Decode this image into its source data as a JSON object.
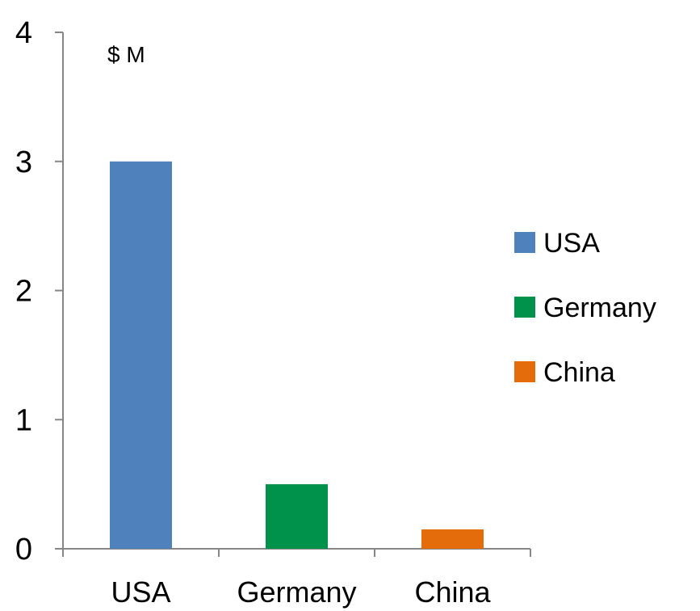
{
  "chart_data": {
    "type": "bar",
    "categories": [
      "USA",
      "Germany",
      "China"
    ],
    "values": [
      3,
      0.5,
      0.15
    ],
    "colors": [
      "#4f81bd",
      "#00924a",
      "#e46c0a"
    ],
    "unit_label": "$ M",
    "ylim": [
      0,
      4
    ],
    "yticks": [
      "0",
      "1",
      "2",
      "3",
      "4"
    ],
    "grid": false,
    "legend": {
      "placement": "right",
      "entries": [
        "USA",
        "Germany",
        "China"
      ]
    }
  }
}
